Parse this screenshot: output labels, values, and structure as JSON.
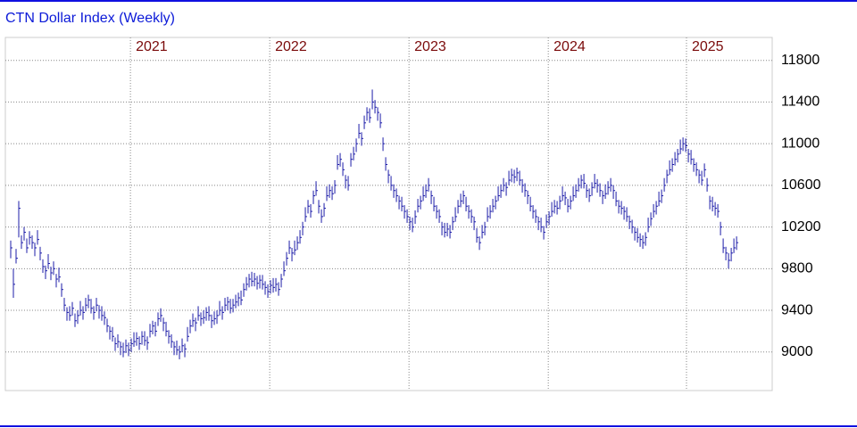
{
  "chart_data": {
    "type": "hlc",
    "title": "CTN Dollar Index (Weekly)",
    "color": "#1c1ca8",
    "year_color": "#7a0a0a",
    "grid": true,
    "xlim": [
      -2,
      284.3
    ],
    "xticks": [
      {
        "value": 44.7,
        "label": "2021"
      },
      {
        "value": 96.7,
        "label": "2022"
      },
      {
        "value": 148.7,
        "label": "2023"
      },
      {
        "value": 200.7,
        "label": "2024"
      },
      {
        "value": 252.3,
        "label": "2025"
      }
    ],
    "ylim": [
      8630,
      12020
    ],
    "yticks": [
      9000,
      9400,
      9800,
      10200,
      10600,
      11000,
      11400,
      11800
    ],
    "high": [
      10070,
      9800,
      9990,
      10450,
      10120,
      10200,
      10090,
      10160,
      10120,
      10050,
      10170,
      10010,
      9890,
      9830,
      9940,
      9820,
      9870,
      9750,
      9810,
      9660,
      9520,
      9430,
      9440,
      9480,
      9370,
      9400,
      9490,
      9440,
      9520,
      9550,
      9510,
      9440,
      9520,
      9450,
      9440,
      9390,
      9320,
      9250,
      9240,
      9140,
      9170,
      9100,
      9090,
      9120,
      9090,
      9130,
      9190,
      9190,
      9150,
      9200,
      9200,
      9150,
      9270,
      9300,
      9290,
      9380,
      9420,
      9330,
      9290,
      9210,
      9170,
      9100,
      9110,
      9060,
      9130,
      9080,
      9240,
      9310,
      9370,
      9330,
      9440,
      9380,
      9400,
      9430,
      9440,
      9360,
      9390,
      9400,
      9490,
      9440,
      9520,
      9530,
      9510,
      9510,
      9550,
      9570,
      9590,
      9660,
      9720,
      9750,
      9770,
      9760,
      9730,
      9740,
      9740,
      9680,
      9650,
      9690,
      9710,
      9710,
      9670,
      9750,
      9870,
      9960,
      10070,
      10000,
      10070,
      10110,
      10170,
      10250,
      10390,
      10460,
      10420,
      10550,
      10640,
      10460,
      10370,
      10430,
      10590,
      10610,
      10590,
      10650,
      10890,
      10910,
      10820,
      10700,
      10690,
      10910,
      10970,
      11050,
      11190,
      11110,
      11270,
      11350,
      11340,
      11520,
      11420,
      11350,
      11290,
      11060,
      10870,
      10750,
      10690,
      10610,
      10570,
      10500,
      10490,
      10410,
      10370,
      10300,
      10290,
      10360,
      10470,
      10500,
      10590,
      10610,
      10670,
      10550,
      10490,
      10410,
      10370,
      10250,
      10240,
      10240,
      10220,
      10300,
      10390,
      10460,
      10520,
      10550,
      10490,
      10410,
      10370,
      10300,
      10190,
      10110,
      10220,
      10250,
      10390,
      10410,
      10470,
      10500,
      10590,
      10610,
      10670,
      10630,
      10740,
      10760,
      10750,
      10770,
      10740,
      10660,
      10620,
      10550,
      10490,
      10410,
      10370,
      10300,
      10290,
      10210,
      10320,
      10350,
      10440,
      10460,
      10450,
      10500,
      10590,
      10540,
      10470,
      10500,
      10590,
      10610,
      10670,
      10700,
      10710,
      10610,
      10570,
      10630,
      10710,
      10660,
      10620,
      10550,
      10610,
      10640,
      10670,
      10600,
      10540,
      10460,
      10450,
      10400,
      10390,
      10310,
      10270,
      10200,
      10190,
      10140,
      10120,
      10150,
      10290,
      10340,
      10420,
      10450,
      10540,
      10560,
      10670,
      10750,
      10840,
      10860,
      10920,
      10950,
      11040,
      11060,
      11050,
      10950,
      10940,
      10860,
      10820,
      10750,
      10740,
      10810,
      10670,
      10500,
      10490,
      10440,
      10420,
      10250,
      10090,
      10010,
      9950,
      10000,
      10090,
      10110
    ],
    "low": [
      9900,
      9520,
      9850,
      10100,
      9990,
      10070,
      9950,
      10030,
      9990,
      9920,
      10030,
      9880,
      9760,
      9700,
      9800,
      9690,
      9740,
      9620,
      9670,
      9530,
      9390,
      9300,
      9300,
      9350,
      9240,
      9270,
      9350,
      9310,
      9390,
      9420,
      9370,
      9310,
      9390,
      9320,
      9300,
      9260,
      9190,
      9120,
      9100,
      9010,
      9040,
      8970,
      8950,
      8990,
      8960,
      9000,
      9050,
      9060,
      9020,
      9070,
      9060,
      9020,
      9140,
      9170,
      9150,
      9250,
      9290,
      9200,
      9150,
      9080,
      9040,
      8970,
      8970,
      8930,
      9000,
      8950,
      9100,
      9180,
      9240,
      9200,
      9300,
      9250,
      9270,
      9300,
      9300,
      9230,
      9260,
      9270,
      9350,
      9310,
      9390,
      9400,
      9370,
      9380,
      9420,
      9440,
      9450,
      9530,
      9590,
      9620,
      9630,
      9630,
      9600,
      9610,
      9600,
      9550,
      9520,
      9560,
      9570,
      9580,
      9540,
      9620,
      9730,
      9830,
      9940,
      9870,
      9930,
      9980,
      10040,
      10120,
      10250,
      10330,
      10290,
      10420,
      10500,
      10330,
      10240,
      10300,
      10450,
      10480,
      10460,
      10520,
      10750,
      10780,
      10690,
      10570,
      10550,
      10780,
      10840,
      10920,
      11050,
      10980,
      11140,
      11220,
      11200,
      11330,
      11290,
      11220,
      11150,
      10930,
      10740,
      10620,
      10550,
      10480,
      10440,
      10370,
      10350,
      10280,
      10240,
      10170,
      10150,
      10230,
      10340,
      10370,
      10450,
      10480,
      10540,
      10420,
      10350,
      10280,
      10240,
      10120,
      10100,
      10110,
      10090,
      10170,
      10250,
      10330,
      10390,
      10420,
      10350,
      10280,
      10240,
      10170,
      10050,
      9980,
      10090,
      10120,
      10250,
      10280,
      10340,
      10370,
      10450,
      10480,
      10540,
      10500,
      10600,
      10630,
      10620,
      10640,
      10600,
      10530,
      10490,
      10420,
      10350,
      10280,
      10240,
      10170,
      10150,
      10080,
      10190,
      10220,
      10300,
      10330,
      10320,
      10370,
      10450,
      10410,
      10340,
      10370,
      10450,
      10480,
      10540,
      10570,
      10570,
      10480,
      10440,
      10500,
      10570,
      10530,
      10490,
      10420,
      10470,
      10510,
      10540,
      10470,
      10400,
      10330,
      10320,
      10270,
      10250,
      10180,
      10140,
      10070,
      10050,
      10010,
      9990,
      10020,
      10150,
      10210,
      10290,
      10320,
      10400,
      10430,
      10540,
      10620,
      10700,
      10730,
      10790,
      10820,
      10900,
      10930,
      10920,
      10820,
      10800,
      10730,
      10690,
      10620,
      10600,
      10680,
      10540,
      10370,
      10350,
      10310,
      10290,
      10120,
      9950,
      9880,
      9800,
      9870,
      9950,
      9980
    ],
    "close": [
      10000,
      9650,
      9900,
      10380,
      10050,
      10150,
      10000,
      10100,
      10050,
      10000,
      10080,
      9950,
      9820,
      9780,
      9850,
      9760,
      9800,
      9700,
      9720,
      9600,
      9450,
      9380,
      9350,
      9420,
      9300,
      9350,
      9400,
      9380,
      9450,
      9500,
      9420,
      9380,
      9450,
      9400,
      9350,
      9330,
      9250,
      9200,
      9150,
      9080,
      9100,
      9050,
      9000,
      9060,
      9020,
      9080,
      9100,
      9130,
      9080,
      9150,
      9110,
      9090,
      9200,
      9250,
      9200,
      9320,
      9350,
      9280,
      9200,
      9150,
      9100,
      9050,
      9020,
      9000,
      9060,
      9030,
      9150,
      9250,
      9300,
      9280,
      9350,
      9320,
      9330,
      9380,
      9350,
      9300,
      9320,
      9350,
      9400,
      9380,
      9450,
      9480,
      9420,
      9450,
      9480,
      9520,
      9500,
      9600,
      9650,
      9700,
      9680,
      9700,
      9660,
      9690,
      9650,
      9620,
      9580,
      9640,
      9620,
      9650,
      9600,
      9700,
      9780,
      9900,
      10000,
      9950,
      9980,
      10050,
      10100,
      10200,
      10300,
      10400,
      10350,
      10500,
      10550,
      10400,
      10300,
      10380,
      10500,
      10550,
      10520,
      10600,
      10800,
      10850,
      10750,
      10650,
      10600,
      10850,
      10900,
      11000,
      11100,
      11050,
      11200,
      11300,
      11250,
      11400,
      11350,
      11300,
      11200,
      11000,
      10800,
      10700,
      10600,
      10550,
      10500,
      10450,
      10400,
      10350,
      10300,
      10250,
      10200,
      10300,
      10400,
      10450,
      10500,
      10550,
      10600,
      10500,
      10400,
      10350,
      10300,
      10200,
      10150,
      10180,
      10150,
      10250,
      10300,
      10400,
      10450,
      10500,
      10400,
      10350,
      10300,
      10250,
      10100,
      10050,
      10150,
      10200,
      10300,
      10350,
      10400,
      10450,
      10500,
      10550,
      10600,
      10580,
      10650,
      10700,
      10680,
      10720,
      10650,
      10600,
      10550,
      10500,
      10400,
      10350,
      10300,
      10250,
      10200,
      10150,
      10250,
      10300,
      10350,
      10400,
      10380,
      10450,
      10500,
      10480,
      10400,
      10450,
      10500,
      10550,
      10600,
      10650,
      10620,
      10550,
      10500,
      10580,
      10620,
      10600,
      10550,
      10500,
      10520,
      10580,
      10600,
      10550,
      10450,
      10400,
      10380,
      10350,
      10300,
      10250,
      10200,
      10150,
      10100,
      10080,
      10050,
      10100,
      10200,
      10280,
      10350,
      10400,
      10450,
      10500,
      10600,
      10700,
      10750,
      10800,
      10850,
      10900,
      10950,
      11000,
      10980,
      10900,
      10850,
      10800,
      10750,
      10700,
      10650,
      10750,
      10600,
      10450,
      10400,
      10380,
      10350,
      10200,
      10000,
      9950,
      9880,
      9950,
      10000,
      10050
    ]
  }
}
